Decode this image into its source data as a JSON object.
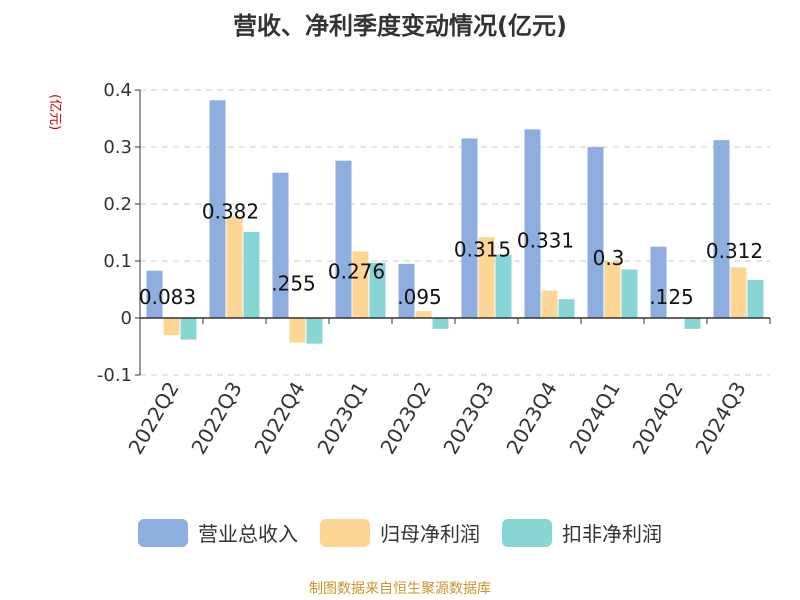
{
  "chart_data": {
    "type": "bar",
    "title": "营收、净利季度变动情况(亿元)",
    "ylabel": "(亿元)",
    "ylim": [
      -0.1,
      0.4
    ],
    "yticks": [
      "-0.1",
      "0",
      "0.1",
      "0.2",
      "0.3",
      "0.4"
    ],
    "grid": true,
    "legend_position": "bottom",
    "categories": [
      "2022Q2",
      "2022Q3",
      "2022Q4",
      "2023Q1",
      "2023Q2",
      "2023Q3",
      "2023Q4",
      "2024Q1",
      "2024Q2",
      "2024Q3"
    ],
    "series": [
      {
        "name": "营业总收入",
        "color": "#8eaee0",
        "values": [
          0.083,
          0.382,
          0.255,
          0.276,
          0.095,
          0.315,
          0.331,
          0.3,
          0.125,
          0.312
        ]
      },
      {
        "name": "归母净利润",
        "color": "#fdd694",
        "values": [
          -0.03,
          0.178,
          -0.043,
          0.117,
          0.012,
          0.142,
          0.048,
          0.099,
          -0.002,
          0.089
        ]
      },
      {
        "name": "扣非净利润",
        "color": "#88d5d5",
        "values": [
          -0.038,
          0.151,
          -0.045,
          0.097,
          -0.019,
          0.111,
          0.033,
          0.085,
          -0.019,
          0.067
        ]
      }
    ],
    "data_labels": [
      "0.083",
      "0.382",
      ".255",
      "0.276",
      ".095",
      "0.315",
      "0.331",
      "0.3",
      ".125",
      "0.312"
    ]
  },
  "footer": {
    "source": "制图数据来自恒生聚源数据库"
  }
}
